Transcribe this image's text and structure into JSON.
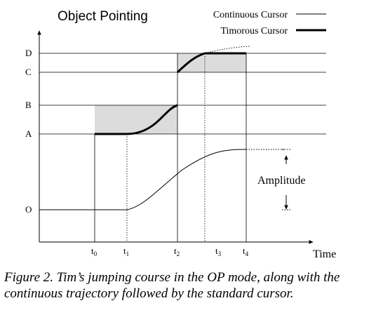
{
  "title": "Object Pointing",
  "legend": {
    "continuous": "Continuous Cursor",
    "timorous": "Timorous Cursor"
  },
  "levels": [
    "D",
    "C",
    "B",
    "A",
    "O"
  ],
  "ticks": [
    {
      "base": "t",
      "sub": "0"
    },
    {
      "base": "t",
      "sub": "1"
    },
    {
      "base": "t",
      "sub": "2"
    },
    {
      "base": "t",
      "sub": "3"
    },
    {
      "base": "t",
      "sub": "4"
    }
  ],
  "x_axis_label": "Time",
  "amplitude_label": "Amplitude",
  "caption": "Figure 2. Tim’s jumping course in the OP mode, along with the continuous trajectory followed by the standard cursor."
}
